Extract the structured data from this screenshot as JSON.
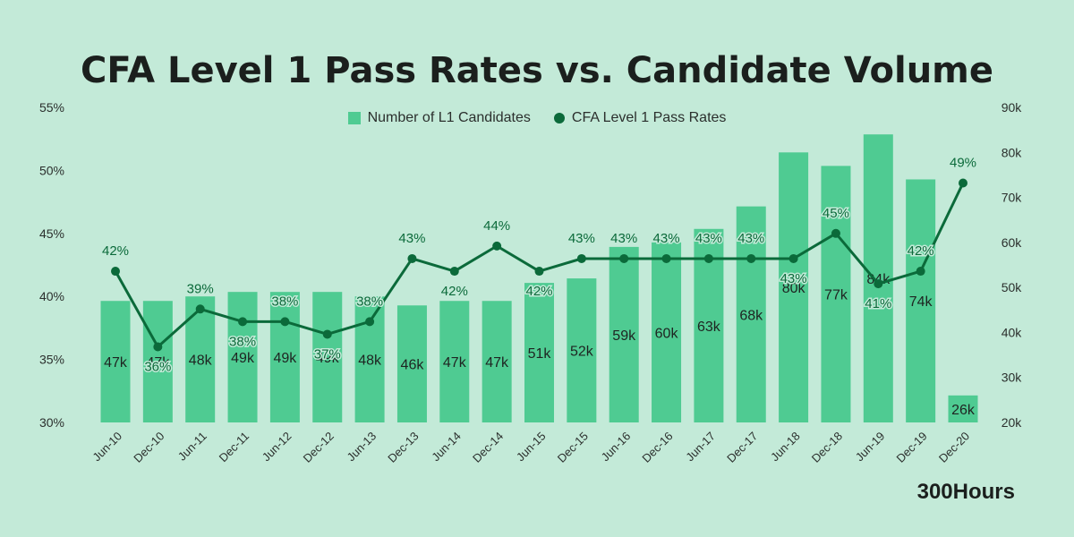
{
  "chart_data": {
    "type": "bar+line",
    "title": "CFA Level 1 Pass Rates vs. Candidate Volume",
    "categories": [
      "Jun-10",
      "Dec-10",
      "Jun-11",
      "Dec-11",
      "Jun-12",
      "Dec-12",
      "Jun-13",
      "Dec-13",
      "Jun-14",
      "Dec-14",
      "Jun-15",
      "Dec-15",
      "Jun-16",
      "Dec-16",
      "Jun-17",
      "Dec-17",
      "Jun-18",
      "Dec-18",
      "Jun-19",
      "Dec-19",
      "Dec-20"
    ],
    "series": [
      {
        "name": "Number of L1 Candidates",
        "type": "bar",
        "axis": "right",
        "values": [
          47,
          47,
          48,
          49,
          49,
          49,
          48,
          46,
          47,
          47,
          51,
          52,
          59,
          60,
          63,
          68,
          80,
          77,
          84,
          74,
          26
        ],
        "labels": [
          "47k",
          "47k",
          "48k",
          "49k",
          "49k",
          "49k",
          "48k",
          "46k",
          "47k",
          "47k",
          "51k",
          "52k",
          "59k",
          "60k",
          "63k",
          "68k",
          "80k",
          "77k",
          "84k",
          "74k",
          "26k"
        ]
      },
      {
        "name": "CFA Level 1 Pass Rates",
        "type": "line",
        "axis": "left",
        "values": [
          42,
          36,
          39,
          38,
          38,
          37,
          38,
          43,
          42,
          44,
          42,
          43,
          43,
          43,
          43,
          43,
          43,
          45,
          41,
          42,
          49
        ],
        "labels": [
          "42%",
          "36%",
          "39%",
          "38%",
          "38%",
          "37%",
          "38%",
          "43%",
          "42%",
          "44%",
          "42%",
          "43%",
          "43%",
          "43%",
          "43%",
          "43%",
          "43%",
          "45%",
          "41%",
          "42%",
          "49%"
        ]
      }
    ],
    "y_left": {
      "min": 30,
      "max": 55,
      "ticks": [
        30,
        35,
        40,
        45,
        50,
        55
      ],
      "tick_labels": [
        "30%",
        "35%",
        "40%",
        "45%",
        "50%",
        "55%"
      ]
    },
    "y_right": {
      "min": 20,
      "max": 90,
      "ticks": [
        20,
        30,
        40,
        50,
        60,
        70,
        80,
        90
      ],
      "tick_labels": [
        "20k",
        "30k",
        "40k",
        "50k",
        "60k",
        "70k",
        "80k",
        "90k"
      ]
    },
    "legend_position": "top-center",
    "grid": false
  },
  "brand": "300Hours",
  "colors": {
    "background": "#c3ead8",
    "bar": "#4fcb92",
    "line": "#0b6a3a",
    "text": "#1b1f1d"
  }
}
